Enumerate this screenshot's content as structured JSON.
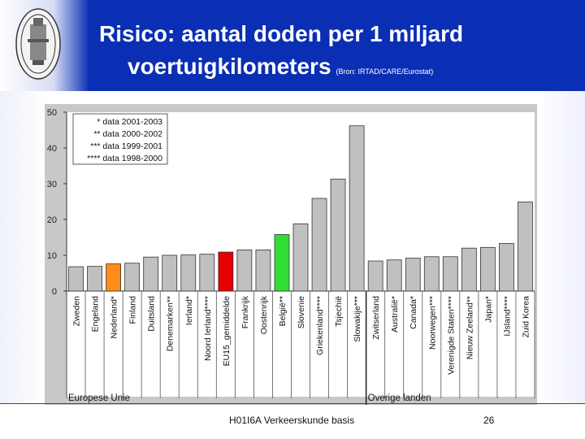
{
  "slide": {
    "title_line1": "Risico: aantal doden per 1 miljard",
    "title_line2": "voertuigkilometers",
    "source": "(Bron: IRTAD/CARE/Eurostat)",
    "footer_text": "H01I6A Verkeerskunde basis",
    "page_number": "26"
  },
  "colors": {
    "header_bg": "#0a2fb4",
    "bar_default": "#c0c0c0",
    "bar_orange": "#ff8c1a",
    "bar_red": "#e60000",
    "bar_green": "#33dd33",
    "plot_bg": "#ffffff"
  },
  "chart_data": {
    "type": "bar",
    "title": "",
    "xlabel": "",
    "ylabel": "",
    "ylim": [
      0,
      50
    ],
    "yticks": [
      "0",
      "10",
      "20",
      "30",
      "40",
      "50"
    ],
    "grid": false,
    "categories": [
      "Zweden",
      "Engeland",
      "Nederland*",
      "Finland",
      "Duitsland",
      "Denemarken**",
      "Ierland*",
      "Noord Ierland****",
      "EU15_gemiddelde",
      "Frankrijk",
      "Oostenrijk",
      "België**",
      "Slovenie",
      "Griekenland****",
      "Tsjechië",
      "Slowakije***",
      "Zwitserland",
      "Australië*",
      "Canada*",
      "Noorwegen***",
      "Verenigde Staten****",
      "Nieuw Zeeland**",
      "Japan*",
      "IJsland****",
      "Zuid Korea"
    ],
    "values": [
      6.8,
      6.9,
      7.6,
      7.8,
      9.5,
      10.0,
      10.1,
      10.3,
      10.9,
      11.5,
      11.5,
      15.8,
      18.8,
      25.9,
      31.3,
      46.2,
      8.4,
      8.7,
      9.2,
      9.6,
      9.6,
      12.0,
      12.2,
      13.3,
      24.9
    ],
    "highlight": {
      "Nederland*": "orange",
      "EU15_gemiddelde": "red",
      "België**": "green"
    },
    "legend_box": {
      "position": "top-left",
      "lines": [
        "* data 2001-2003",
        "** data 2000-2002",
        "*** data 1999-2001",
        "**** data 1998-2000"
      ]
    },
    "groups": [
      {
        "label": "Europese Unie",
        "start": 0,
        "end": 15
      },
      {
        "label": "Overige landen",
        "start": 16,
        "end": 24
      }
    ]
  }
}
